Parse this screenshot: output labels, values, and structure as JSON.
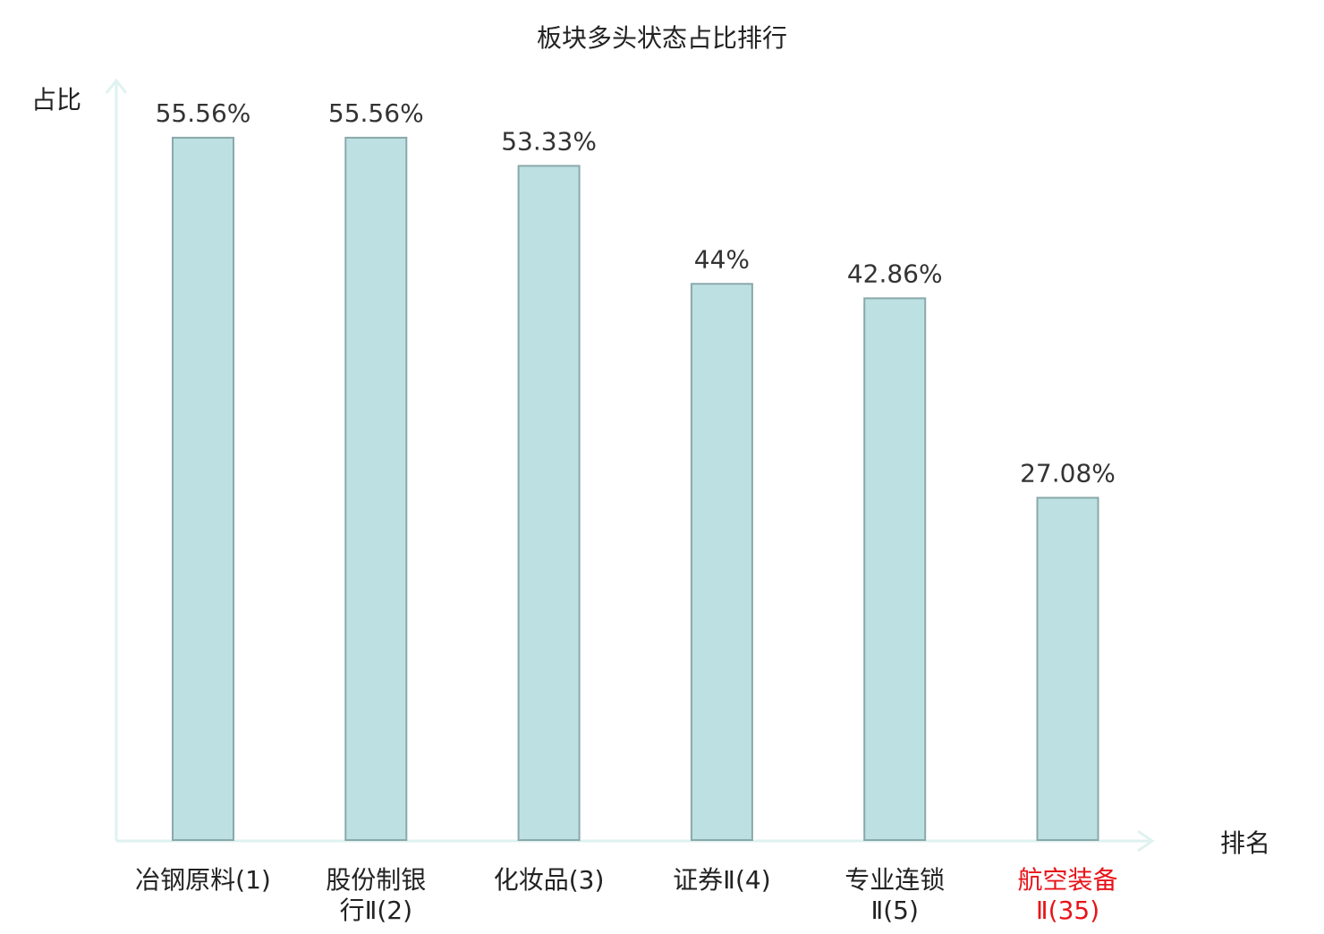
{
  "chart_data": {
    "type": "bar",
    "title": "板块多头状态占比排行",
    "ylabel": "占比",
    "xlabel": "排名",
    "ylim": [
      0,
      60
    ],
    "grid": false,
    "legend": "none",
    "categories": [
      [
        "冶钢原料(1)"
      ],
      [
        "股份制银",
        "行Ⅱ(2)"
      ],
      [
        "化妆品(3)"
      ],
      [
        "证券Ⅱ(4)"
      ],
      [
        "专业连锁",
        "Ⅱ(5)"
      ],
      [
        "航空装备",
        "Ⅱ(35)"
      ]
    ],
    "values": [
      55.56,
      55.56,
      53.33,
      44,
      42.86,
      27.08
    ],
    "value_labels": [
      "55.56%",
      "55.56%",
      "53.33%",
      "44%",
      "42.86%",
      "27.08%"
    ],
    "highlight_index": 5,
    "colors": {
      "bar_fill": "#bde0e3",
      "bar_stroke": "#8aa8aa",
      "axis": "#dff2ef",
      "text": "#222222",
      "value_text": "#333333",
      "highlight_text": "#e8141a"
    }
  }
}
